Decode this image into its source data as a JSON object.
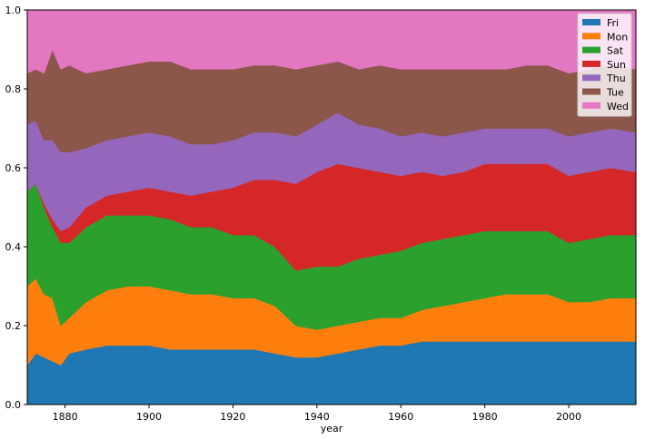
{
  "chart_data": {
    "type": "area",
    "stacked": true,
    "normalized": true,
    "title": "",
    "xlabel": "year",
    "ylabel": "",
    "xlim": [
      1871,
      2016
    ],
    "ylim": [
      0,
      1
    ],
    "x_ticks": [
      1880,
      1900,
      1920,
      1940,
      1960,
      1980,
      2000
    ],
    "y_ticks": [
      0.0,
      0.2,
      0.4,
      0.6,
      0.8,
      1.0
    ],
    "y_tick_labels": [
      "0.0",
      "0.2",
      "0.4",
      "0.6",
      "0.8",
      "1.0"
    ],
    "grid": false,
    "legend_position": "top-right",
    "x": [
      1871,
      1873,
      1875,
      1877,
      1879,
      1881,
      1885,
      1890,
      1895,
      1900,
      1905,
      1910,
      1915,
      1920,
      1925,
      1930,
      1935,
      1940,
      1945,
      1950,
      1955,
      1960,
      1965,
      1970,
      1975,
      1980,
      1985,
      1990,
      1995,
      2000,
      2005,
      2010,
      2016
    ],
    "series": [
      {
        "name": "Fri",
        "color": "#1f77b4",
        "values": [
          0.1,
          0.13,
          0.12,
          0.11,
          0.1,
          0.13,
          0.14,
          0.15,
          0.15,
          0.15,
          0.14,
          0.14,
          0.14,
          0.14,
          0.14,
          0.13,
          0.12,
          0.12,
          0.13,
          0.14,
          0.15,
          0.15,
          0.16,
          0.16,
          0.16,
          0.16,
          0.16,
          0.16,
          0.16,
          0.16,
          0.16,
          0.16,
          0.16
        ]
      },
      {
        "name": "Mon",
        "color": "#ff7f0e",
        "values": [
          0.2,
          0.19,
          0.16,
          0.16,
          0.1,
          0.09,
          0.12,
          0.14,
          0.15,
          0.15,
          0.15,
          0.14,
          0.14,
          0.13,
          0.13,
          0.12,
          0.08,
          0.07,
          0.07,
          0.07,
          0.07,
          0.07,
          0.08,
          0.09,
          0.1,
          0.11,
          0.12,
          0.12,
          0.12,
          0.1,
          0.1,
          0.11,
          0.11
        ]
      },
      {
        "name": "Sat",
        "color": "#2ca02c",
        "values": [
          0.24,
          0.24,
          0.22,
          0.18,
          0.21,
          0.19,
          0.19,
          0.19,
          0.18,
          0.18,
          0.18,
          0.17,
          0.17,
          0.16,
          0.16,
          0.15,
          0.14,
          0.16,
          0.15,
          0.16,
          0.16,
          0.17,
          0.17,
          0.17,
          0.17,
          0.17,
          0.16,
          0.16,
          0.16,
          0.15,
          0.16,
          0.16,
          0.16
        ]
      },
      {
        "name": "Sun",
        "color": "#d62728",
        "values": [
          0.0,
          0.0,
          0.01,
          0.02,
          0.03,
          0.04,
          0.05,
          0.05,
          0.06,
          0.07,
          0.07,
          0.08,
          0.09,
          0.12,
          0.14,
          0.17,
          0.22,
          0.24,
          0.26,
          0.23,
          0.21,
          0.19,
          0.18,
          0.16,
          0.16,
          0.17,
          0.17,
          0.17,
          0.17,
          0.17,
          0.17,
          0.17,
          0.16
        ]
      },
      {
        "name": "Thu",
        "color": "#9467bd",
        "values": [
          0.17,
          0.16,
          0.16,
          0.2,
          0.2,
          0.19,
          0.15,
          0.14,
          0.14,
          0.14,
          0.14,
          0.13,
          0.12,
          0.12,
          0.12,
          0.12,
          0.12,
          0.12,
          0.13,
          0.11,
          0.11,
          0.1,
          0.1,
          0.1,
          0.1,
          0.09,
          0.09,
          0.09,
          0.09,
          0.1,
          0.1,
          0.1,
          0.1
        ]
      },
      {
        "name": "Tue",
        "color": "#8c564b",
        "values": [
          0.13,
          0.13,
          0.17,
          0.23,
          0.21,
          0.22,
          0.19,
          0.18,
          0.18,
          0.18,
          0.19,
          0.19,
          0.19,
          0.18,
          0.17,
          0.17,
          0.17,
          0.15,
          0.13,
          0.14,
          0.16,
          0.17,
          0.16,
          0.17,
          0.16,
          0.15,
          0.15,
          0.16,
          0.16,
          0.16,
          0.16,
          0.16,
          0.16
        ]
      },
      {
        "name": "Wed",
        "color": "#e377c2",
        "values": [
          0.16,
          0.15,
          0.16,
          0.1,
          0.15,
          0.14,
          0.16,
          0.15,
          0.14,
          0.13,
          0.13,
          0.15,
          0.15,
          0.15,
          0.14,
          0.14,
          0.15,
          0.14,
          0.13,
          0.15,
          0.14,
          0.15,
          0.15,
          0.15,
          0.15,
          0.15,
          0.15,
          0.14,
          0.14,
          0.16,
          0.15,
          0.14,
          0.15
        ]
      }
    ]
  }
}
